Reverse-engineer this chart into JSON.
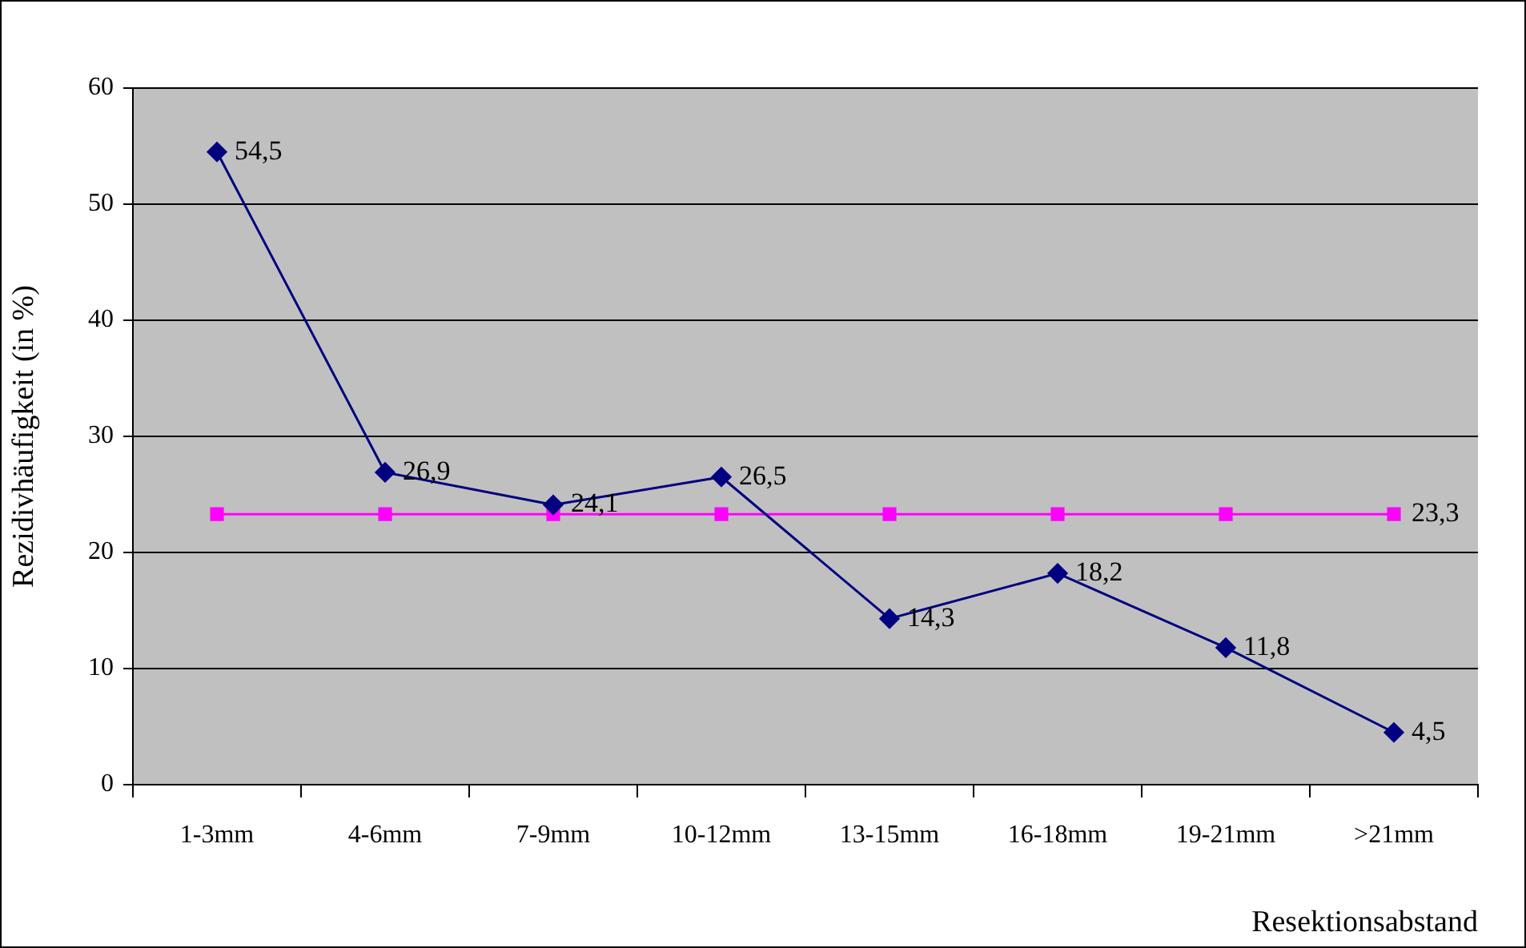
{
  "chart_data": {
    "type": "line",
    "ylabel": "Rezidivhäufigkeit (in %)",
    "xlabel": "Resektionsabstand",
    "categories": [
      "1-3mm",
      "4-6mm",
      "7-9mm",
      "10-12mm",
      "13-15mm",
      "16-18mm",
      "19-21mm",
      ">21mm"
    ],
    "series": [
      {
        "color": "#000080",
        "marker": "diamond",
        "values": [
          54.5,
          26.9,
          24.1,
          26.5,
          14.3,
          18.2,
          11.8,
          4.5
        ],
        "value_labels": [
          "54,5",
          "26,9",
          "24,1",
          "26,5",
          "14,3",
          "18,2",
          "11,8",
          "4,5"
        ]
      },
      {
        "color": "#ff00ff",
        "marker": "square",
        "values": [
          23.3,
          23.3,
          23.3,
          23.3,
          23.3,
          23.3,
          23.3,
          23.3
        ],
        "value_labels": [
          null,
          null,
          null,
          null,
          null,
          null,
          null,
          "23,3"
        ]
      }
    ],
    "ylim": [
      0,
      60
    ],
    "yticks": [
      0,
      10,
      20,
      30,
      40,
      50,
      60
    ],
    "grid": "y",
    "legend": false,
    "line_style": "solid"
  }
}
